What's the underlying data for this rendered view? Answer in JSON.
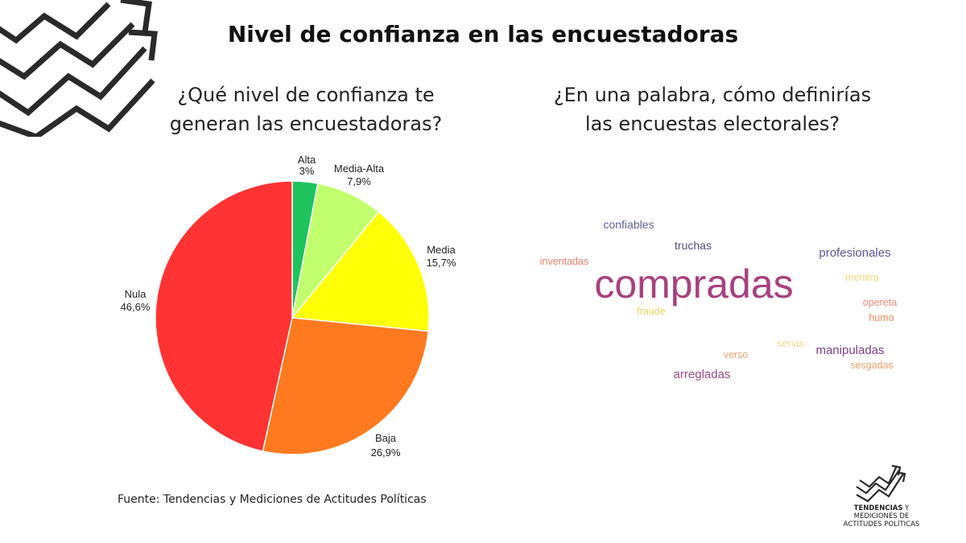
{
  "header": {
    "title": "Nivel de confianza en las encuestadoras"
  },
  "left_panel": {
    "question_line1": "¿Qué nivel de confianza te",
    "question_line2": "generan las encuestadoras?"
  },
  "right_panel": {
    "question_line1": "¿En una palabra, cómo definirías",
    "question_line2": "las encuestas electorales?"
  },
  "chart_data": [
    {
      "type": "pie",
      "title": "¿Qué nivel de confianza te generan las encuestadoras?",
      "start": "12 o'clock, clockwise",
      "slices": [
        {
          "label": "Alta",
          "value": 3.0,
          "display": "3%",
          "color": "#1fc35e"
        },
        {
          "label": "Media-Alta",
          "value": 7.9,
          "display": "7,9%",
          "color": "#c2ff6e"
        },
        {
          "label": "Media",
          "value": 15.7,
          "display": "15,7%",
          "color": "#ffff05"
        },
        {
          "label": "Baja",
          "value": 26.9,
          "display": "26,9%",
          "color": "#ff7a1f"
        },
        {
          "label": "Nula",
          "value": 46.6,
          "display": "46,6%",
          "color": "#ff3333"
        }
      ]
    },
    {
      "type": "wordcloud",
      "title": "¿En una palabra, cómo definirías las encuestas electorales?",
      "words": [
        {
          "text": "compradas",
          "rank": 1,
          "color": "#a8417e"
        },
        {
          "text": "manipuladas",
          "rank": 3,
          "color": "#7a3d8c"
        },
        {
          "text": "arregladas",
          "rank": 3,
          "color": "#9a4a86"
        },
        {
          "text": "profesionales",
          "rank": 3,
          "color": "#5a5597"
        },
        {
          "text": "confiables",
          "rank": 4,
          "color": "#5e5f9a"
        },
        {
          "text": "truchas",
          "rank": 4,
          "color": "#55497f"
        },
        {
          "text": "inventadas",
          "rank": 5,
          "color": "#e6806d"
        },
        {
          "text": "humo",
          "rank": 5,
          "color": "#ee8a55"
        },
        {
          "text": "opereta",
          "rank": 5,
          "color": "#f0897a"
        },
        {
          "text": "sesgadas",
          "rank": 5,
          "color": "#f3a067"
        },
        {
          "text": "verso",
          "rank": 5,
          "color": "#f2a07a"
        },
        {
          "text": "fraude",
          "rank": 5,
          "color": "#f0d060"
        },
        {
          "text": "mentira",
          "rank": 5,
          "color": "#f0d77a"
        },
        {
          "text": "serias",
          "rank": 5,
          "color": "#ecd88a"
        }
      ]
    }
  ],
  "footer": {
    "source": "Fuente: Tendencias y Mediciones de Actitudes Políticas",
    "brand_line1_bold": "TENDENCIAS",
    "brand_line1_rest": " Y",
    "brand_line2": "MEDICIONES DE",
    "brand_line3": "ACTITUDES POLÍTICAS"
  },
  "icons": {
    "corner_logo": "zigzag-arrows-icon",
    "brand_logo": "zigzag-arrows-icon"
  }
}
